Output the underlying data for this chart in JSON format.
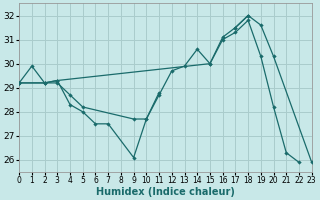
{
  "xlabel": "Humidex (Indice chaleur)",
  "xlim": [
    0,
    23
  ],
  "ylim": [
    25.5,
    32.5
  ],
  "yticks": [
    26,
    27,
    28,
    29,
    30,
    31,
    32
  ],
  "xticks": [
    0,
    1,
    2,
    3,
    4,
    5,
    6,
    7,
    8,
    9,
    10,
    11,
    12,
    13,
    14,
    15,
    16,
    17,
    18,
    19,
    20,
    21,
    22,
    23
  ],
  "background_color": "#c8e8e8",
  "grid_color": "#aacccc",
  "line_color": "#1a6b6b",
  "series": [
    {
      "segments": [
        [
          [
            0,
            29.2
          ],
          [
            1,
            29.9
          ],
          [
            2,
            29.2
          ],
          [
            3,
            29.3
          ],
          [
            4,
            28.3
          ],
          [
            5,
            28.0
          ],
          [
            6,
            27.5
          ],
          [
            7,
            27.5
          ],
          [
            9,
            26.1
          ],
          [
            10,
            27.7
          ],
          [
            11,
            28.8
          ]
        ]
      ]
    },
    {
      "segments": [
        [
          [
            0,
            29.2
          ],
          [
            2,
            29.2
          ],
          [
            3,
            29.2
          ],
          [
            4,
            28.7
          ],
          [
            5,
            28.2
          ],
          [
            9,
            27.7
          ],
          [
            10,
            27.7
          ],
          [
            11,
            28.7
          ],
          [
            12,
            29.7
          ],
          [
            13,
            29.9
          ],
          [
            14,
            30.6
          ],
          [
            15,
            30.0
          ],
          [
            16,
            31.0
          ],
          [
            17,
            31.3
          ],
          [
            18,
            31.8
          ],
          [
            19,
            30.3
          ],
          [
            20,
            28.2
          ],
          [
            21,
            26.3
          ],
          [
            22,
            25.9
          ]
        ]
      ]
    },
    {
      "segments": [
        [
          [
            0,
            29.2
          ],
          [
            2,
            29.2
          ],
          [
            3,
            29.3
          ],
          [
            15,
            30.0
          ],
          [
            16,
            31.1
          ],
          [
            17,
            31.5
          ],
          [
            18,
            32.0
          ],
          [
            19,
            31.6
          ],
          [
            20,
            30.3
          ],
          [
            23,
            25.9
          ]
        ]
      ]
    },
    {
      "segments": [
        [
          [
            17,
            31.5
          ],
          [
            18,
            32.0
          ]
        ]
      ]
    }
  ]
}
